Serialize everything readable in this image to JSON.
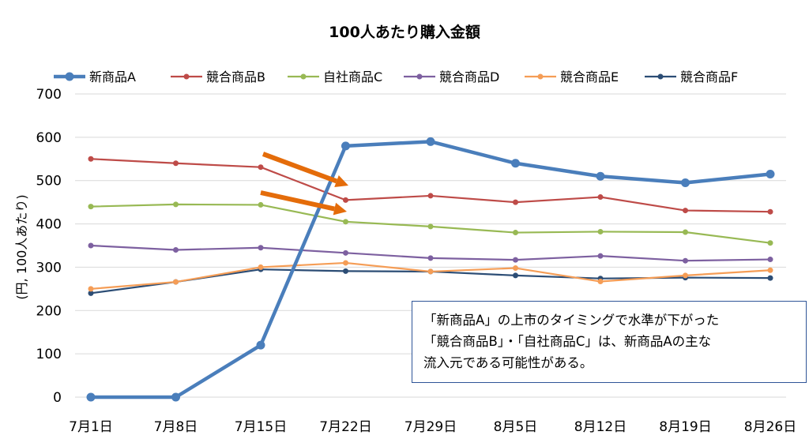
{
  "chart_data": {
    "type": "line",
    "title": "100人あたり購入金額",
    "ylabel": "(円, 100人あたり)",
    "xlabel": "",
    "categories": [
      "7月1日",
      "7月8日",
      "7月15日",
      "7月22日",
      "7月29日",
      "8月5日",
      "8月12日",
      "8月19日",
      "8月26日"
    ],
    "ylim": [
      0,
      700
    ],
    "yticks": [
      0,
      100,
      200,
      300,
      400,
      500,
      600,
      700
    ],
    "grid": true,
    "legend_position": "top",
    "series": [
      {
        "name": "新商品A",
        "color": "#4a7ebb",
        "values": [
          0,
          0,
          120,
          580,
          590,
          540,
          510,
          495,
          515
        ]
      },
      {
        "name": "競合商品B",
        "color": "#be4b48",
        "values": [
          550,
          540,
          531,
          455,
          465,
          450,
          462,
          431,
          428
        ]
      },
      {
        "name": "自社商品C",
        "color": "#98b954",
        "values": [
          440,
          445,
          444,
          405,
          394,
          380,
          382,
          381,
          356
        ]
      },
      {
        "name": "競合商品D",
        "color": "#7d60a0",
        "values": [
          350,
          340,
          345,
          333,
          321,
          317,
          326,
          315,
          318
        ]
      },
      {
        "name": "競合商品E",
        "color": "#f59d56",
        "values": [
          250,
          266,
          300,
          310,
          290,
          298,
          267,
          281,
          293
        ]
      },
      {
        "name": "競合商品F",
        "color": "#2c4d75",
        "values": [
          240,
          266,
          295,
          291,
          290,
          281,
          274,
          276,
          275
        ]
      }
    ],
    "annotation": {
      "lines": [
        "「新商品A」の上市のタイミングで水準が下がった",
        "「競合商品B」・「自社商品C」は、新商品Aの主な",
        "流入元である可能性がある。"
      ],
      "arrow_color": "#e46c0a"
    }
  }
}
